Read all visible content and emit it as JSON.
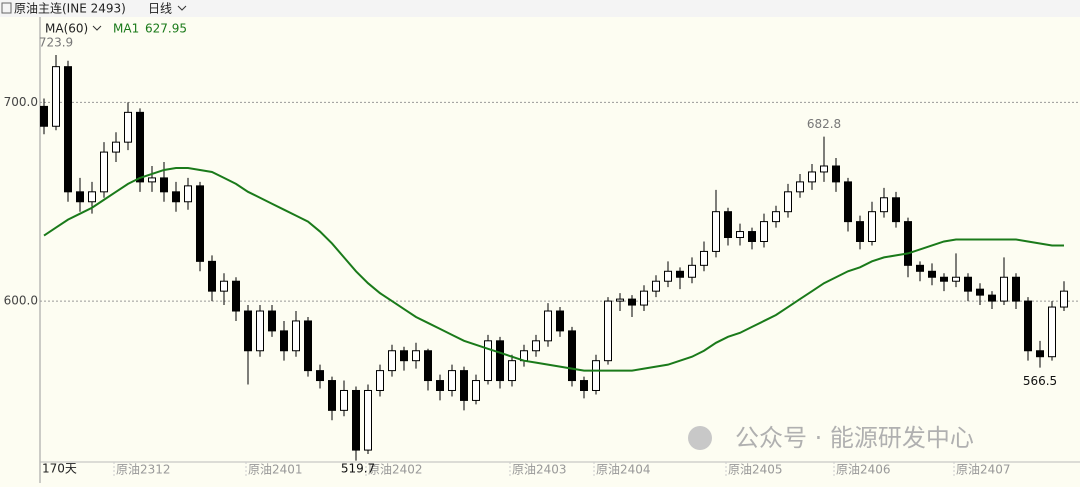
{
  "chart_data": {
    "type": "candlestick",
    "title": "原油主连(INE 2493)",
    "period": "日线",
    "ma_label": "MA(60)",
    "ma_last": 627.95,
    "day_count_label": "170天",
    "watermark": "公众号 · 能源研发中心",
    "ylim": [
      519,
      743
    ],
    "yticks": [
      {
        "value": 600,
        "label": "600.0"
      },
      {
        "value": 700,
        "label": "700.0"
      }
    ],
    "grid": true,
    "up_color": "#ffffff",
    "down_color": "#000000",
    "ma_color": "#1a7a1a",
    "categories": [
      null,
      null,
      null,
      null,
      null,
      null,
      "原油2312",
      null,
      null,
      null,
      null,
      null,
      null,
      null,
      null,
      null,
      null,
      "原油2401",
      null,
      null,
      null,
      null,
      null,
      null,
      null,
      null,
      null,
      "原油2402",
      null,
      null,
      null,
      null,
      null,
      null,
      null,
      null,
      null,
      null,
      null,
      "原油2403",
      null,
      null,
      null,
      null,
      null,
      null,
      "原油2404",
      null,
      null,
      null,
      null,
      null,
      null,
      null,
      null,
      null,
      null,
      "原油2405",
      null,
      null,
      null,
      null,
      null,
      null,
      null,
      null,
      "原油2406",
      null,
      null,
      null,
      null,
      null,
      null,
      null,
      null,
      null,
      "原油2407",
      null,
      null,
      null,
      null,
      null,
      null,
      null,
      null,
      null
    ],
    "candles": [
      [
        698,
        702,
        684,
        688
      ],
      [
        688,
        723.9,
        686,
        718
      ],
      [
        718,
        721,
        650,
        655
      ],
      [
        655,
        662,
        645,
        650
      ],
      [
        650,
        660,
        644,
        655
      ],
      [
        655,
        680,
        652,
        675
      ],
      [
        675,
        685,
        670,
        680
      ],
      [
        680,
        700,
        676,
        695
      ],
      [
        695,
        697,
        655,
        660
      ],
      [
        660,
        668,
        655,
        662
      ],
      [
        662,
        670,
        650,
        655
      ],
      [
        655,
        660,
        645,
        650
      ],
      [
        650,
        662,
        646,
        658
      ],
      [
        658,
        660,
        615,
        620
      ],
      [
        620,
        623,
        600,
        605
      ],
      [
        605,
        614,
        598,
        610
      ],
      [
        610,
        612,
        590,
        595
      ],
      [
        595,
        598,
        558,
        575
      ],
      [
        575,
        598,
        572,
        595
      ],
      [
        595,
        598,
        582,
        585
      ],
      [
        585,
        590,
        570,
        575
      ],
      [
        575,
        595,
        572,
        590
      ],
      [
        590,
        592,
        562,
        565
      ],
      [
        565,
        568,
        556,
        560
      ],
      [
        560,
        562,
        540,
        545
      ],
      [
        545,
        560,
        542,
        555
      ],
      [
        555,
        557,
        519.7,
        525
      ],
      [
        525,
        558,
        523,
        555
      ],
      [
        555,
        568,
        552,
        565
      ],
      [
        565,
        578,
        562,
        575
      ],
      [
        575,
        577,
        565,
        570
      ],
      [
        570,
        579,
        566,
        575
      ],
      [
        575,
        576,
        555,
        560
      ],
      [
        560,
        563,
        550,
        555
      ],
      [
        555,
        568,
        552,
        565
      ],
      [
        565,
        567,
        545,
        550
      ],
      [
        550,
        563,
        548,
        560
      ],
      [
        560,
        583,
        558,
        580
      ],
      [
        580,
        582,
        556,
        560
      ],
      [
        560,
        573,
        557,
        570
      ],
      [
        570,
        578,
        567,
        575
      ],
      [
        575,
        583,
        572,
        580
      ],
      [
        580,
        599,
        577,
        595
      ],
      [
        595,
        597,
        582,
        585
      ],
      [
        585,
        587,
        557,
        560
      ],
      [
        560,
        562,
        551,
        555
      ],
      [
        555,
        573,
        553,
        570
      ],
      [
        570,
        602,
        568,
        600
      ],
      [
        600,
        604,
        595,
        601
      ],
      [
        601,
        603,
        592,
        598
      ],
      [
        598,
        608,
        595,
        605
      ],
      [
        605,
        613,
        602,
        610
      ],
      [
        610,
        620,
        607,
        615
      ],
      [
        615,
        617,
        606,
        612
      ],
      [
        612,
        622,
        609,
        618
      ],
      [
        618,
        630,
        615,
        625
      ],
      [
        625,
        656,
        622,
        645
      ],
      [
        645,
        647,
        628,
        632
      ],
      [
        632,
        639,
        628,
        635
      ],
      [
        635,
        637,
        626,
        630
      ],
      [
        630,
        644,
        627,
        640
      ],
      [
        640,
        648,
        637,
        645
      ],
      [
        645,
        659,
        642,
        655
      ],
      [
        655,
        664,
        652,
        660
      ],
      [
        660,
        669,
        656,
        665
      ],
      [
        665,
        682.8,
        660,
        668
      ],
      [
        668,
        672,
        655,
        660
      ],
      [
        660,
        662,
        635,
        640
      ],
      [
        640,
        643,
        626,
        630
      ],
      [
        630,
        650,
        628,
        645
      ],
      [
        645,
        657,
        642,
        652
      ],
      [
        652,
        655,
        637,
        640
      ],
      [
        640,
        642,
        612,
        618
      ],
      [
        618,
        620,
        610,
        615
      ],
      [
        615,
        619,
        608,
        612
      ],
      [
        612,
        614,
        605,
        610
      ],
      [
        610,
        624,
        607,
        612
      ],
      [
        612,
        614,
        600,
        605
      ],
      [
        606,
        609,
        598,
        603
      ],
      [
        603,
        605,
        596,
        600
      ],
      [
        600,
        622,
        598,
        612
      ],
      [
        612,
        614,
        596,
        600
      ],
      [
        600,
        602,
        570,
        575
      ],
      [
        575,
        580,
        566.5,
        572
      ],
      [
        572,
        600,
        570,
        597
      ],
      [
        597,
        610,
        595,
        605
      ]
    ],
    "series": [
      {
        "name": "MA1",
        "color": "#1a7a1a",
        "values": [
          633,
          637,
          641,
          644,
          647,
          651,
          655,
          659,
          662,
          664,
          666,
          667,
          667,
          666,
          665,
          662,
          659,
          655,
          652,
          649,
          646,
          643,
          640,
          635,
          629,
          622,
          615,
          609,
          604,
          600,
          596,
          592,
          589,
          586,
          583,
          580,
          578,
          576,
          574,
          572,
          570,
          569,
          568,
          567,
          566,
          565,
          565,
          565,
          565,
          565,
          566,
          567,
          568,
          570,
          572,
          575,
          579,
          582,
          584,
          587,
          590,
          593,
          597,
          601,
          605,
          609,
          612,
          615,
          617,
          620,
          622,
          623,
          624,
          626,
          628,
          630,
          631,
          631,
          631,
          631,
          631,
          631,
          630,
          629,
          628,
          628
        ]
      }
    ]
  }
}
